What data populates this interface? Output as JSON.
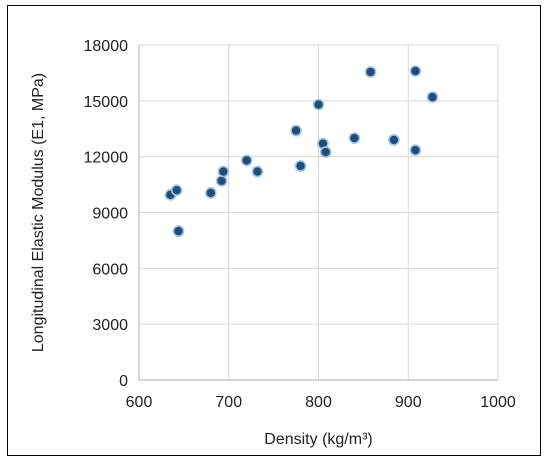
{
  "chart_data": {
    "type": "scatter",
    "xlabel": "Density (kg/m³)",
    "ylabel": "Longitudinal Elastic Modulus (E1, MPa)",
    "xlim": [
      600,
      1000
    ],
    "ylim": [
      0,
      18000
    ],
    "x_ticks": [
      600,
      700,
      800,
      900,
      1000
    ],
    "y_ticks": [
      0,
      3000,
      6000,
      9000,
      12000,
      15000,
      18000
    ],
    "grid": true,
    "legend": "none",
    "marker_fill": "#1f4e79",
    "marker_edge": "#9dc3e6",
    "gridline_color": "#d9d9d9",
    "axis_color": "#bfbfbf",
    "points": [
      {
        "x": 635,
        "y": 9950
      },
      {
        "x": 642,
        "y": 10200
      },
      {
        "x": 644,
        "y": 8000
      },
      {
        "x": 680,
        "y": 10050
      },
      {
        "x": 692,
        "y": 10700
      },
      {
        "x": 694,
        "y": 11200
      },
      {
        "x": 720,
        "y": 11800
      },
      {
        "x": 732,
        "y": 11200
      },
      {
        "x": 775,
        "y": 13400
      },
      {
        "x": 780,
        "y": 11500
      },
      {
        "x": 800,
        "y": 14800
      },
      {
        "x": 805,
        "y": 12700
      },
      {
        "x": 808,
        "y": 12250
      },
      {
        "x": 840,
        "y": 13000
      },
      {
        "x": 858,
        "y": 16550
      },
      {
        "x": 884,
        "y": 12900
      },
      {
        "x": 908,
        "y": 16600
      },
      {
        "x": 908,
        "y": 12350
      },
      {
        "x": 927,
        "y": 15200
      }
    ]
  }
}
